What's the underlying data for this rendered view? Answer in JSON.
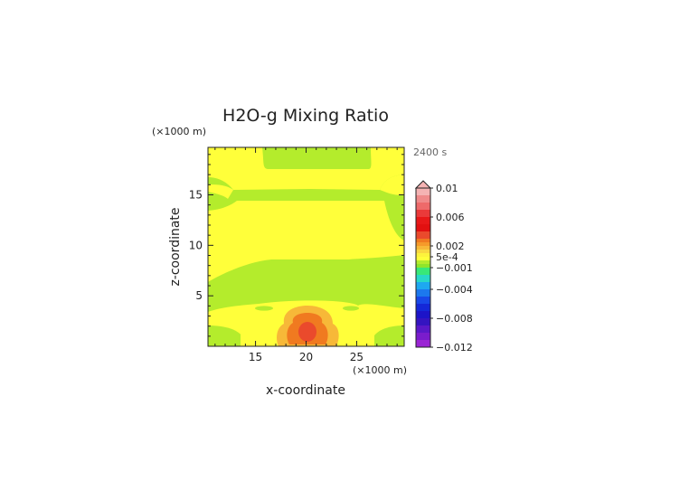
{
  "chart_data": {
    "type": "heatmap",
    "title": "H2O-g Mixing Ratio",
    "time_label": "2400 s",
    "xlabel": "x-coordinate",
    "ylabel": "z-coordinate",
    "x_unit": "(×1000 m)",
    "y_unit": "(×1000 m)",
    "xlim": [
      10.3,
      29.7
    ],
    "ylim": [
      0,
      19.7
    ],
    "xticks": [
      {
        "value": 15,
        "label": "15"
      },
      {
        "value": 20,
        "label": "20"
      },
      {
        "value": 25,
        "label": "25"
      }
    ],
    "yticks": [
      {
        "value": 5,
        "label": "5"
      },
      {
        "value": 10,
        "label": "10"
      },
      {
        "value": 15,
        "label": "15"
      }
    ],
    "colorbar": {
      "range": [
        -0.012,
        0.01
      ],
      "labels": [
        {
          "value": 0.01,
          "label": "0.01"
        },
        {
          "value": 0.006,
          "label": "0.006"
        },
        {
          "value": 0.002,
          "label": "0.002"
        },
        {
          "value": 0.0005,
          "label": "5e-4"
        },
        {
          "value": -0.001,
          "label": "−0.001"
        },
        {
          "value": -0.004,
          "label": "−0.004"
        },
        {
          "value": -0.008,
          "label": "−0.008"
        },
        {
          "value": -0.012,
          "label": "−0.012"
        }
      ],
      "bands": [
        {
          "lo": 0.009,
          "hi": 0.01,
          "color": "#f5b3b3"
        },
        {
          "lo": 0.008,
          "hi": 0.009,
          "color": "#f08a8a"
        },
        {
          "lo": 0.007,
          "hi": 0.008,
          "color": "#ee6a6a"
        },
        {
          "lo": 0.006,
          "hi": 0.007,
          "color": "#ea3a3a"
        },
        {
          "lo": 0.005,
          "hi": 0.006,
          "color": "#e81818"
        },
        {
          "lo": 0.004,
          "hi": 0.005,
          "color": "#e21010"
        },
        {
          "lo": 0.003,
          "hi": 0.004,
          "color": "#ea4a2c"
        },
        {
          "lo": 0.0025,
          "hi": 0.003,
          "color": "#f07a20"
        },
        {
          "lo": 0.002,
          "hi": 0.0025,
          "color": "#f59a2a"
        },
        {
          "lo": 0.0015,
          "hi": 0.002,
          "color": "#f7b838"
        },
        {
          "lo": 0.001,
          "hi": 0.0015,
          "color": "#f9d840"
        },
        {
          "lo": 0.0005,
          "hi": 0.001,
          "color": "#fdf33c"
        },
        {
          "lo": 0.0,
          "hi": 0.0005,
          "color": "#ffff3a"
        },
        {
          "lo": -0.0005,
          "hi": 0.0,
          "color": "#b4ec2c"
        },
        {
          "lo": -0.001,
          "hi": -0.0005,
          "color": "#8fe52a"
        },
        {
          "lo": -0.002,
          "hi": -0.001,
          "color": "#38e878"
        },
        {
          "lo": -0.003,
          "hi": -0.002,
          "color": "#28d8c8"
        },
        {
          "lo": -0.004,
          "hi": -0.003,
          "color": "#1ea8f0"
        },
        {
          "lo": -0.005,
          "hi": -0.004,
          "color": "#1c78ee"
        },
        {
          "lo": -0.006,
          "hi": -0.005,
          "color": "#1848e8"
        },
        {
          "lo": -0.007,
          "hi": -0.006,
          "color": "#1428d8"
        },
        {
          "lo": -0.008,
          "hi": -0.007,
          "color": "#1c14c8"
        },
        {
          "lo": -0.009,
          "hi": -0.008,
          "color": "#3414c0"
        },
        {
          "lo": -0.01,
          "hi": -0.009,
          "color": "#5a18c8"
        },
        {
          "lo": -0.011,
          "hi": -0.01,
          "color": "#7a1ccc"
        },
        {
          "lo": -0.012,
          "hi": -0.011,
          "color": "#9a24d4"
        }
      ]
    },
    "field_regions": [
      {
        "name": "background",
        "level": "-5e-4 to 0",
        "color": "#b4ec2c"
      },
      {
        "name": "upper-yellow-band",
        "level": "0 to 5e-4",
        "color": "#ffff3a"
      },
      {
        "name": "lower-yellow-band",
        "level": "0 to 5e-4",
        "color": "#ffff3a"
      },
      {
        "name": "plume-outer",
        "level": "0.0015 to 0.002",
        "color": "#f7b838"
      },
      {
        "name": "plume-mid",
        "level": "0.0025 to 0.003",
        "color": "#f07a20"
      },
      {
        "name": "plume-core",
        "level": "0.003 to 0.004",
        "color": "#ea4a2c"
      }
    ]
  }
}
